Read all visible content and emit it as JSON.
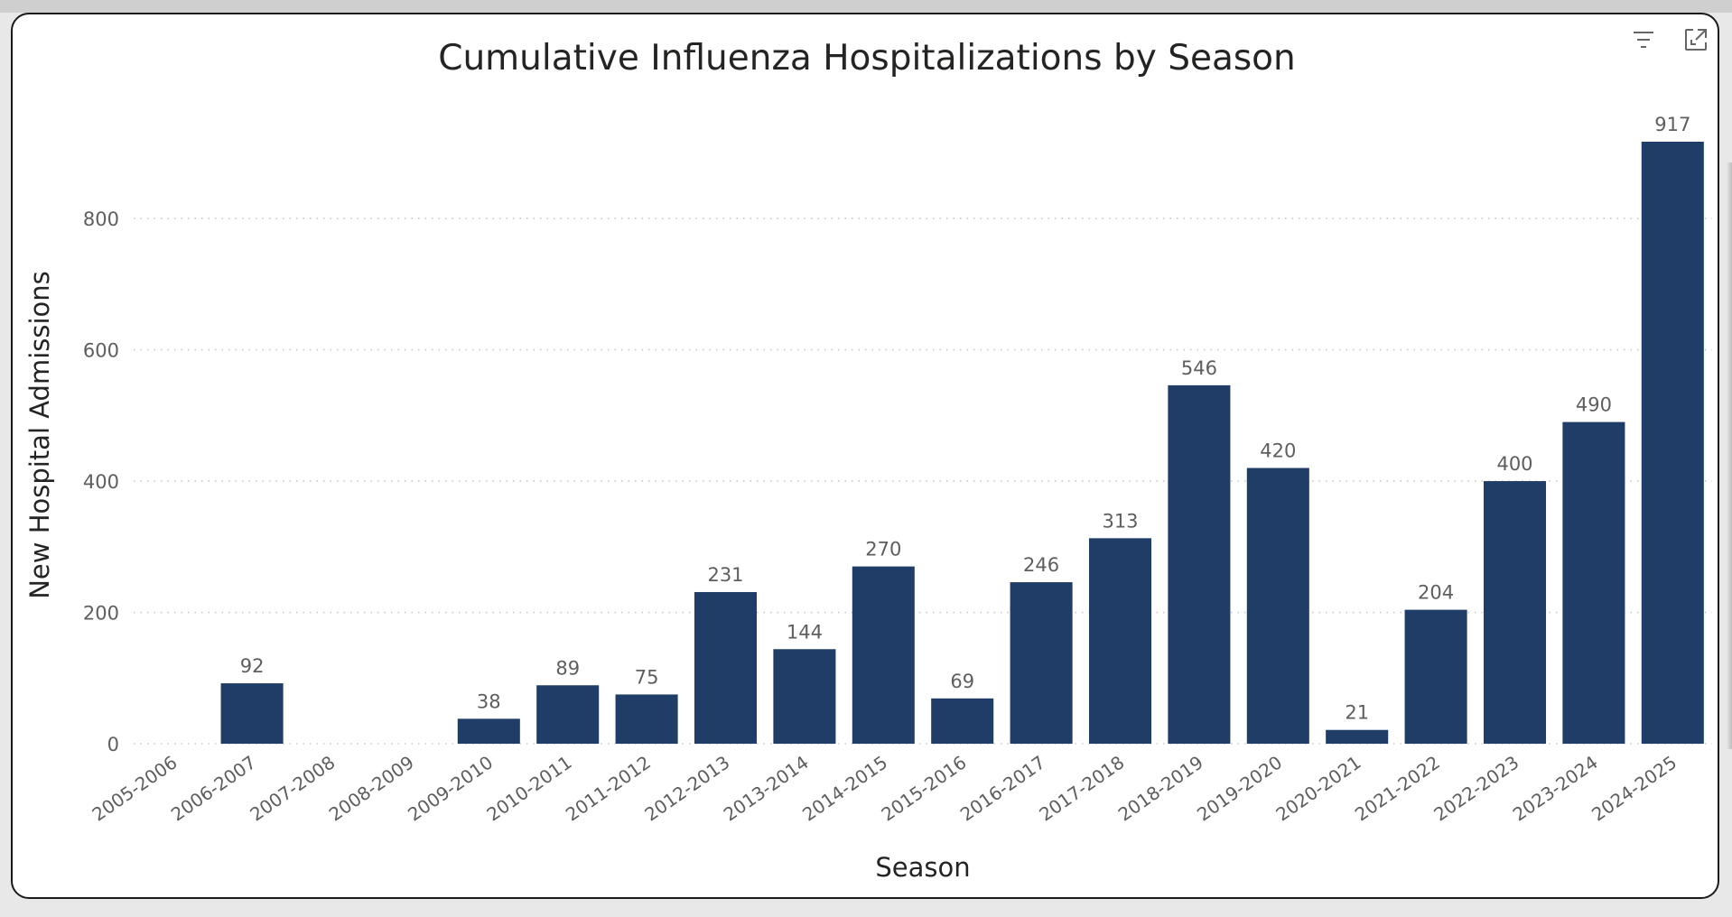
{
  "chart_data": {
    "type": "bar",
    "title": "Cumulative Influenza Hospitalizations by Season",
    "xlabel": "Season",
    "ylabel": "New Hospital Admissions",
    "categories": [
      "2005-2006",
      "2006-2007",
      "2007-2008",
      "2008-2009",
      "2009-2010",
      "2010-2011",
      "2011-2012",
      "2012-2013",
      "2013-2014",
      "2014-2015",
      "2015-2016",
      "2016-2017",
      "2017-2018",
      "2018-2019",
      "2019-2020",
      "2020-2021",
      "2021-2022",
      "2022-2023",
      "2023-2024",
      "2024-2025"
    ],
    "values": [
      null,
      92,
      null,
      null,
      38,
      89,
      75,
      231,
      144,
      270,
      69,
      246,
      313,
      546,
      420,
      21,
      204,
      400,
      490,
      917
    ],
    "yticks": [
      0,
      200,
      400,
      600,
      800
    ],
    "ylim": [
      0,
      917
    ],
    "grid": true,
    "data_labels": true,
    "bar_color": "#1f3d66"
  },
  "toolbar": {
    "filter_icon": "filter-icon",
    "focus_icon": "focus-mode-icon"
  }
}
